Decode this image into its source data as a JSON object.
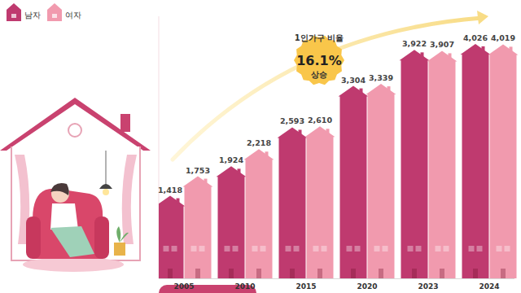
{
  "chart_data": {
    "type": "bar",
    "categories": [
      "2005",
      "2010",
      "2015",
      "2020",
      "2023",
      "2024"
    ],
    "series": [
      {
        "name": "남자",
        "color": "#bf3a6f",
        "values": [
          1418,
          1924,
          2593,
          3304,
          3922,
          4026
        ],
        "value_labels": [
          "1,418",
          "1,924",
          "2,593",
          "3,304",
          "3,922",
          "4,026"
        ]
      },
      {
        "name": "여자",
        "color": "#f19aae",
        "values": [
          1753,
          2218,
          2610,
          3339,
          3907,
          4019
        ],
        "value_labels": [
          "1,753",
          "2,218",
          "2,610",
          "3,339",
          "3,907",
          "4,019"
        ]
      }
    ],
    "ylim": [
      0,
      4500
    ],
    "tick_labels": "x",
    "data_labels": true,
    "legend": "top-left",
    "grid": false,
    "annotations": [
      "1인가구 비율",
      "16.1%",
      "상승"
    ]
  }
}
